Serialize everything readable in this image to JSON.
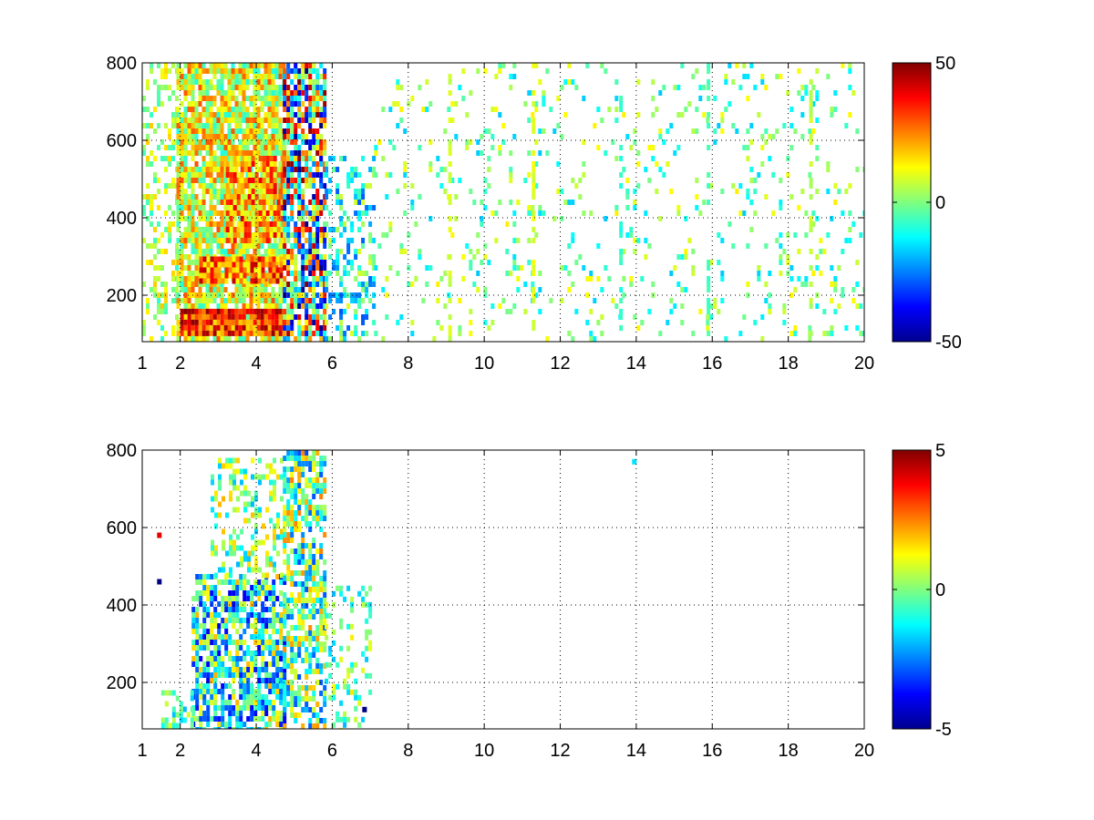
{
  "chart_data": [
    {
      "type": "heatmap",
      "title": "",
      "xlabel": "",
      "ylabel": "",
      "xlim": [
        1,
        20
      ],
      "ylim": [
        80,
        800
      ],
      "x_ticks": [
        {
          "value": 1,
          "label": "1"
        },
        {
          "value": 2,
          "label": "2"
        },
        {
          "value": 4,
          "label": "4"
        },
        {
          "value": 6,
          "label": "6"
        },
        {
          "value": 8,
          "label": "8"
        },
        {
          "value": 10,
          "label": "10"
        },
        {
          "value": 12,
          "label": "12"
        },
        {
          "value": 14,
          "label": "14"
        },
        {
          "value": 16,
          "label": "16"
        },
        {
          "value": 18,
          "label": "18"
        },
        {
          "value": 20,
          "label": "20"
        }
      ],
      "y_ticks": [
        {
          "value": 200,
          "label": "200"
        },
        {
          "value": 400,
          "label": "400"
        },
        {
          "value": 600,
          "label": "600"
        },
        {
          "value": 800,
          "label": "800"
        }
      ],
      "grid": true,
      "colormap": "jet",
      "colorbar": {
        "range": [
          -50,
          50
        ],
        "labels": [
          {
            "value": 50,
            "label": "50"
          },
          {
            "value": 0,
            "label": "0"
          },
          {
            "value": -50,
            "label": "-50"
          }
        ]
      },
      "regions": [
        {
          "x": [
            1.0,
            1.9
          ],
          "y": [
            80,
            800
          ],
          "density": 0.35,
          "value_range": [
            -8,
            18
          ]
        },
        {
          "x": [
            1.9,
            4.7
          ],
          "y": [
            80,
            800
          ],
          "density": 0.85,
          "value_range": [
            -10,
            30
          ]
        },
        {
          "x": [
            2.0,
            4.7
          ],
          "y": [
            100,
            165
          ],
          "density": 0.97,
          "value_range": [
            15,
            50
          ]
        },
        {
          "x": [
            2.5,
            4.7
          ],
          "y": [
            240,
            300
          ],
          "density": 0.92,
          "value_range": [
            10,
            45
          ]
        },
        {
          "x": [
            3.2,
            4.7
          ],
          "y": [
            340,
            560
          ],
          "density": 0.8,
          "value_range": [
            5,
            40
          ]
        },
        {
          "x": [
            4.7,
            5.8
          ],
          "y": [
            80,
            800
          ],
          "density": 0.8,
          "value_range": [
            -50,
            50
          ]
        },
        {
          "x": [
            5.8,
            7.1
          ],
          "y": [
            80,
            560
          ],
          "density": 0.4,
          "value_range": [
            -30,
            10
          ]
        },
        {
          "x": [
            7.1,
            20
          ],
          "y": [
            80,
            800
          ],
          "density": 0.1,
          "value_range": [
            -18,
            14
          ]
        }
      ],
      "stripes": [
        {
          "x": 9.1,
          "y": [
            80,
            800
          ],
          "value": 8
        },
        {
          "x": 11.3,
          "y": [
            80,
            800
          ],
          "value": 10
        },
        {
          "x": 13.6,
          "y": [
            80,
            800
          ],
          "value": -8
        },
        {
          "x": 15.9,
          "y": [
            80,
            800
          ],
          "value": -5
        },
        {
          "x": 18.6,
          "y": [
            80,
            800
          ],
          "value": 6
        }
      ]
    },
    {
      "type": "heatmap",
      "title": "",
      "xlabel": "",
      "ylabel": "",
      "xlim": [
        1,
        20
      ],
      "ylim": [
        80,
        800
      ],
      "x_ticks": [
        {
          "value": 1,
          "label": "1"
        },
        {
          "value": 2,
          "label": "2"
        },
        {
          "value": 4,
          "label": "4"
        },
        {
          "value": 6,
          "label": "6"
        },
        {
          "value": 8,
          "label": "8"
        },
        {
          "value": 10,
          "label": "10"
        },
        {
          "value": 12,
          "label": "12"
        },
        {
          "value": 14,
          "label": "14"
        },
        {
          "value": 16,
          "label": "16"
        },
        {
          "value": 18,
          "label": "18"
        },
        {
          "value": 20,
          "label": "20"
        }
      ],
      "y_ticks": [
        {
          "value": 200,
          "label": "200"
        },
        {
          "value": 400,
          "label": "400"
        },
        {
          "value": 600,
          "label": "600"
        },
        {
          "value": 800,
          "label": "800"
        }
      ],
      "grid": true,
      "colormap": "jet",
      "colorbar": {
        "range": [
          -5,
          5
        ],
        "labels": [
          {
            "value": 5,
            "label": "5"
          },
          {
            "value": 0,
            "label": "0"
          },
          {
            "value": -5,
            "label": "-5"
          }
        ]
      },
      "regions": [
        {
          "x": [
            2.3,
            4.7
          ],
          "y": [
            80,
            480
          ],
          "density": 0.7,
          "value_range": [
            -4,
            2
          ]
        },
        {
          "x": [
            2.8,
            4.7
          ],
          "y": [
            480,
            780
          ],
          "density": 0.35,
          "value_range": [
            -2,
            2
          ]
        },
        {
          "x": [
            4.7,
            5.8
          ],
          "y": [
            80,
            800
          ],
          "density": 0.65,
          "value_range": [
            -3,
            2.5
          ]
        },
        {
          "x": [
            5.8,
            7.0
          ],
          "y": [
            80,
            450
          ],
          "density": 0.25,
          "value_range": [
            -2,
            1.5
          ]
        },
        {
          "x": [
            1.5,
            2.3
          ],
          "y": [
            80,
            180
          ],
          "density": 0.4,
          "value_range": [
            -2,
            1
          ]
        }
      ],
      "points": [
        {
          "x": 13.95,
          "y": 770,
          "value": -1.5
        },
        {
          "x": 1.45,
          "y": 460,
          "value": -5
        },
        {
          "x": 1.45,
          "y": 580,
          "value": 4
        },
        {
          "x": 6.85,
          "y": 130,
          "value": -5
        }
      ]
    }
  ]
}
